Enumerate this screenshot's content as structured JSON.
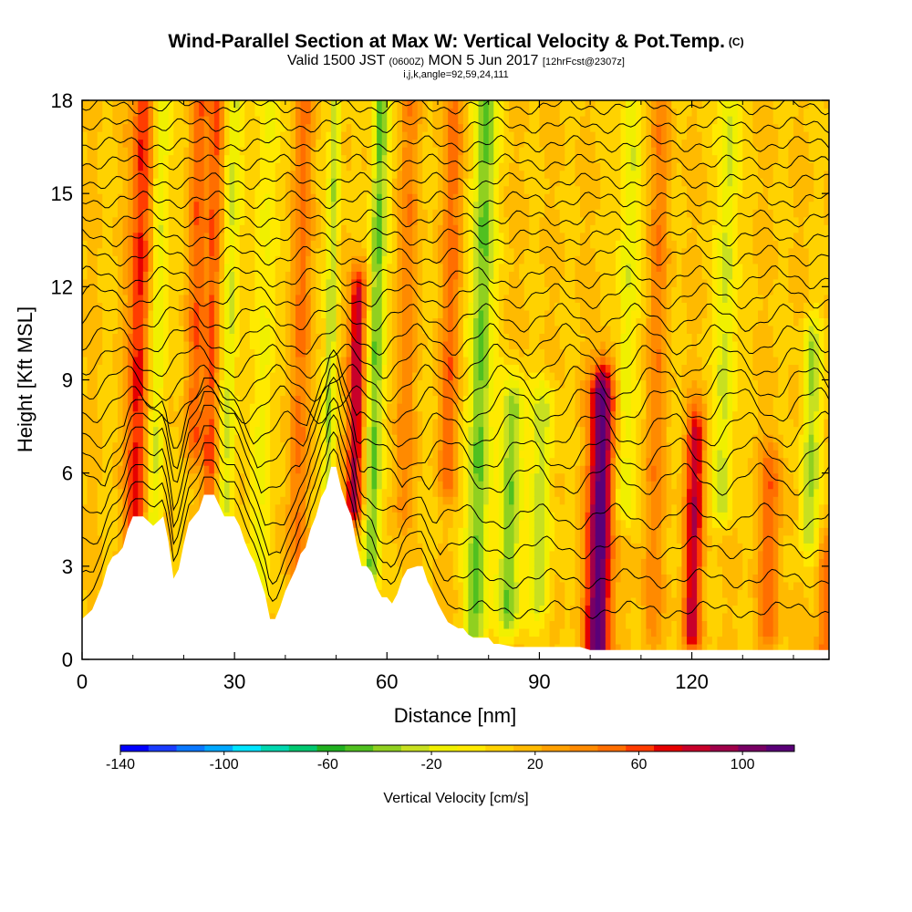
{
  "header": {
    "title": "Wind-Parallel Section at Max W: Vertical Velocity & Pot.Temp.",
    "title_mark": "(C)",
    "valid_prefix": "Valid 1500 JST",
    "valid_utc": "(0600Z)",
    "valid_date": "MON 5 Jun 2017",
    "forecast_tag": "[12hrFcst@2307z]",
    "indices": "i,j,k,angle=92,59,24,111"
  },
  "chart_data": {
    "type": "heatmap",
    "title": "Wind-Parallel Section at Max W: Vertical Velocity & Pot.Temp.",
    "xlabel": "Distance [nm]",
    "ylabel": "Height [Kft MSL]",
    "xlim": [
      0,
      147
    ],
    "ylim": [
      0,
      18
    ],
    "xticks": [
      0,
      30,
      60,
      90,
      120
    ],
    "yticks": [
      0,
      3,
      6,
      9,
      12,
      15,
      18
    ],
    "colorbar": {
      "label": "Vertical Velocity [cm/s]",
      "range": [
        -140,
        120
      ],
      "step": 10,
      "tick_values": [
        -140,
        -100,
        -60,
        -20,
        20,
        60,
        100
      ],
      "colors": [
        "#0000ff",
        "#1a3cff",
        "#0a78ff",
        "#00a8ff",
        "#00e5ff",
        "#00d8b0",
        "#00c870",
        "#20b020",
        "#50c020",
        "#90d020",
        "#c8e020",
        "#f0f000",
        "#ffea00",
        "#ffd200",
        "#ffba00",
        "#ffa000",
        "#ff8a00",
        "#ff6e00",
        "#ff3c00",
        "#e60000",
        "#c8002a",
        "#a0004a",
        "#780064",
        "#5a0078"
      ]
    },
    "terrain_kft": [
      [
        0,
        1.3
      ],
      [
        2,
        1.6
      ],
      [
        3,
        2
      ],
      [
        4,
        2.4
      ],
      [
        5,
        3
      ],
      [
        6,
        3.3
      ],
      [
        7,
        3.4
      ],
      [
        8,
        3.6
      ],
      [
        9,
        4.2
      ],
      [
        10,
        4.6
      ],
      [
        12,
        4.6
      ],
      [
        14,
        4.3
      ],
      [
        16,
        4.6
      ],
      [
        17,
        3.8
      ],
      [
        18,
        2.6
      ],
      [
        19,
        2.9
      ],
      [
        20,
        3.7
      ],
      [
        21,
        4.4
      ],
      [
        22,
        4.6
      ],
      [
        23,
        4.8
      ],
      [
        24,
        5.3
      ],
      [
        26,
        5.3
      ],
      [
        28,
        4.6
      ],
      [
        30,
        4.6
      ],
      [
        31,
        4.3
      ],
      [
        32,
        3.8
      ],
      [
        33,
        3.4
      ],
      [
        34,
        3.1
      ],
      [
        35,
        2.6
      ],
      [
        36,
        2.1
      ],
      [
        37,
        1.3
      ],
      [
        38,
        1.3
      ],
      [
        39,
        1.7
      ],
      [
        40,
        2.2
      ],
      [
        42,
        2.9
      ],
      [
        43,
        3.4
      ],
      [
        44,
        3.6
      ],
      [
        45,
        4.2
      ],
      [
        46,
        4.6
      ],
      [
        47,
        5.2
      ],
      [
        48,
        5.5
      ],
      [
        49,
        6.2
      ],
      [
        50,
        6.2
      ],
      [
        51,
        5.5
      ],
      [
        52,
        5
      ],
      [
        53,
        4.6
      ],
      [
        54,
        3.7
      ],
      [
        55,
        3
      ],
      [
        56,
        3
      ],
      [
        57,
        2.8
      ],
      [
        58,
        2.3
      ],
      [
        59,
        2
      ],
      [
        60,
        2
      ],
      [
        61,
        1.8
      ],
      [
        62,
        2.1
      ],
      [
        63,
        2.6
      ],
      [
        64,
        2.9
      ],
      [
        66,
        3
      ],
      [
        67,
        3
      ],
      [
        68,
        2.5
      ],
      [
        69,
        2.2
      ],
      [
        70,
        1.8
      ],
      [
        72,
        1.2
      ],
      [
        73,
        1.1
      ],
      [
        74,
        1
      ],
      [
        75,
        1
      ],
      [
        76,
        0.8
      ],
      [
        77,
        0.7
      ],
      [
        80,
        0.7
      ],
      [
        81,
        0.5
      ],
      [
        82,
        0.5
      ],
      [
        85,
        0.4
      ],
      [
        98,
        0.4
      ],
      [
        100,
        0.3
      ],
      [
        147,
        0.3
      ]
    ],
    "velocity_features": [
      {
        "x": 10.5,
        "ymin": 3.5,
        "ymax": 18,
        "value": 55,
        "half_width": 2.2
      },
      {
        "x": 14,
        "ymin": 4,
        "ymax": 18,
        "value": -35,
        "half_width": 1.8
      },
      {
        "x": 22,
        "ymin": 7,
        "ymax": 18,
        "value": 35,
        "half_width": 1.8
      },
      {
        "x": 25,
        "ymin": 5,
        "ymax": 18,
        "value": 45,
        "half_width": 1.4
      },
      {
        "x": 28.5,
        "ymin": 5,
        "ymax": 18,
        "value": -35,
        "half_width": 1.6
      },
      {
        "x": 35,
        "ymin": 2,
        "ymax": 18,
        "value": -25,
        "half_width": 2
      },
      {
        "x": 42,
        "ymin": 3,
        "ymax": 18,
        "value": 30,
        "half_width": 2
      },
      {
        "x": 48.5,
        "ymin": 6,
        "ymax": 18,
        "value": -40,
        "half_width": 1.2
      },
      {
        "x": 53.5,
        "ymin": 5,
        "ymax": 11.5,
        "value": 75,
        "half_width": 1.6
      },
      {
        "x": 57,
        "ymin": 3,
        "ymax": 18,
        "value": -55,
        "half_width": 1.6
      },
      {
        "x": 63,
        "ymin": 5,
        "ymax": 18,
        "value": 25,
        "half_width": 2
      },
      {
        "x": 72,
        "ymin": 6,
        "ymax": 18,
        "value": 35,
        "half_width": 1.8
      },
      {
        "x": 77.5,
        "ymin": 1,
        "ymax": 18,
        "value": -55,
        "half_width": 2.2
      },
      {
        "x": 84,
        "ymin": 1.5,
        "ymax": 8,
        "value": -50,
        "half_width": 2.2
      },
      {
        "x": 90,
        "ymin": 2,
        "ymax": 8,
        "value": -35,
        "half_width": 2.2
      },
      {
        "x": 101.5,
        "ymin": 0.5,
        "ymax": 8.5,
        "value": 100,
        "half_width": 2.4
      },
      {
        "x": 106.5,
        "ymin": 5,
        "ymax": 18,
        "value": -30,
        "half_width": 2
      },
      {
        "x": 112,
        "ymin": 1,
        "ymax": 18,
        "value": 25,
        "half_width": 2
      },
      {
        "x": 120,
        "ymin": 1,
        "ymax": 7,
        "value": 65,
        "half_width": 1.8
      },
      {
        "x": 126,
        "ymin": 5,
        "ymax": 18,
        "value": -35,
        "half_width": 2
      },
      {
        "x": 135,
        "ymin": 1,
        "ymax": 6,
        "value": 35,
        "half_width": 2.2
      },
      {
        "x": 143,
        "ymin": 4,
        "ymax": 10,
        "value": -40,
        "half_width": 1.8
      },
      {
        "x": 146,
        "ymin": 0.3,
        "ymax": 3,
        "value": 35,
        "half_width": 1.5
      }
    ],
    "theta_contour_base_kft": [
      1.6,
      2.6,
      3.6,
      4.6,
      5.8,
      6.6,
      7.4,
      8.2,
      8.9,
      9.6,
      10.3,
      11,
      11.7,
      12.3,
      13,
      13.6,
      14.2,
      14.8,
      15.4,
      16,
      16.6,
      17.2,
      17.8
    ]
  },
  "colorbar_ticks": [
    "-140",
    "-100",
    "-60",
    "-20",
    "20",
    "60",
    "100"
  ],
  "x_tick_labels": [
    "0",
    "30",
    "60",
    "90",
    "120"
  ],
  "y_tick_labels": [
    "0",
    "3",
    "6",
    "9",
    "12",
    "15",
    "18"
  ]
}
